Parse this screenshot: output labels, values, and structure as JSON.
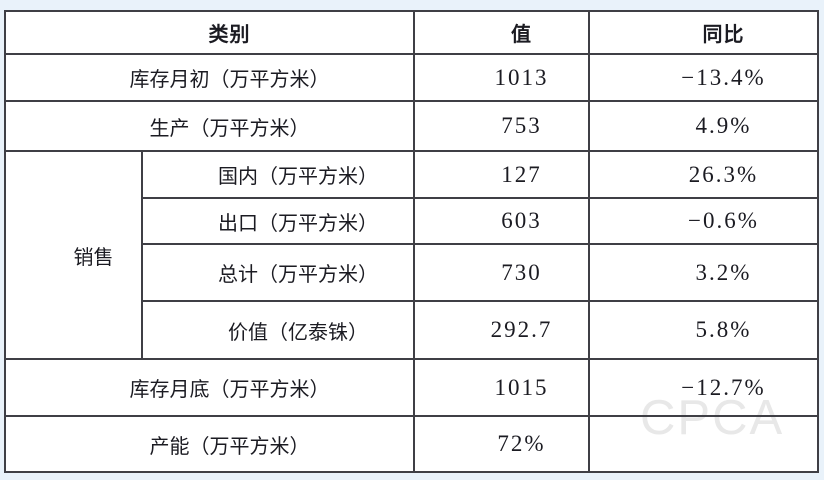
{
  "page": {
    "background_color": "#e9f2fa"
  },
  "colors": {
    "table_border": "#3f3f45",
    "table_text": "#1b1b22",
    "cell_background": "#ffffff",
    "watermark_color": "#e8e8e8"
  },
  "watermark": {
    "text": "CPCA"
  },
  "chart_data": {
    "type": "table",
    "columns": [
      "类别",
      "值",
      "同比"
    ],
    "sales_group_label": "销售",
    "rows": [
      {
        "category": "库存月初（万平方米）",
        "value": "1013",
        "yoy": "−13.4%"
      },
      {
        "category": "生产（万平方米）",
        "value": "753",
        "yoy": "4.9%"
      },
      {
        "category": "国内（万平方米）",
        "value": "127",
        "yoy": "26.3%",
        "group": "销售"
      },
      {
        "category": "出口（万平方米）",
        "value": "603",
        "yoy": "−0.6%",
        "group": "销售"
      },
      {
        "category": "总计（万平方米）",
        "value": "730",
        "yoy": "3.2%",
        "group": "销售"
      },
      {
        "category": "价值（亿泰铢）",
        "value": "292.7",
        "yoy": "5.8%",
        "group": "销售"
      },
      {
        "category": "库存月底（万平方米）",
        "value": "1015",
        "yoy": "−12.7%"
      },
      {
        "category": "产能（万平方米）",
        "value": "72%",
        "yoy": ""
      }
    ]
  }
}
